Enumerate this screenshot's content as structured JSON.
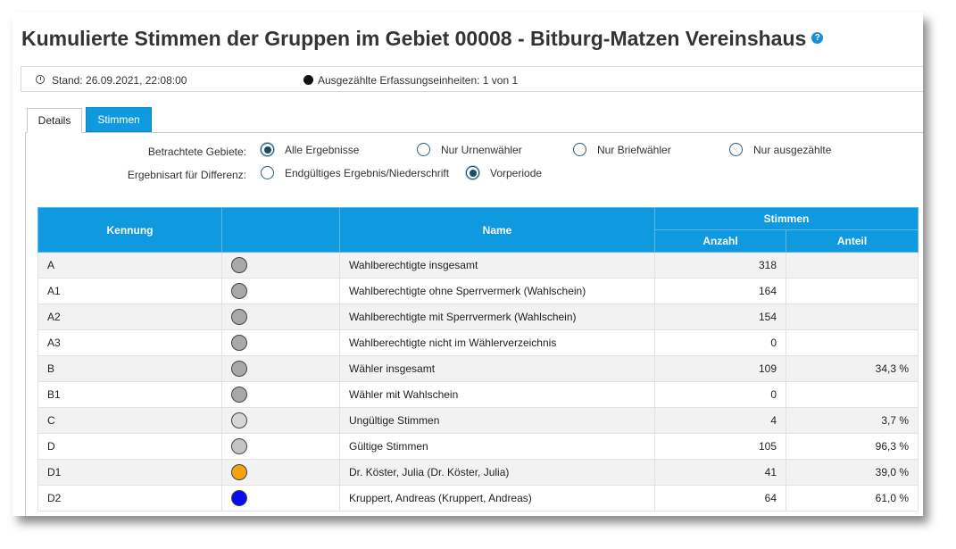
{
  "page": {
    "title": "Kumulierte Stimmen der Gruppen im Gebiet 00008 - Bitburg-Matzen Vereinshaus",
    "help_icon": "?"
  },
  "status": {
    "stand": "Stand: 26.09.2021, 22:08:00",
    "ausgezaehlt": "Ausgezählte Erfassungseinheiten: 1 von 1"
  },
  "tabs": [
    {
      "label": "Details",
      "active": true
    },
    {
      "label": "Stimmen",
      "active": false
    }
  ],
  "filters": {
    "gebiete_label": "Betrachtete Gebiete:",
    "gebiete_options": [
      {
        "label": "Alle Ergebnisse",
        "checked": true
      },
      {
        "label": "Nur Urnenwähler",
        "checked": false
      },
      {
        "label": "Nur Briefwähler",
        "checked": false
      },
      {
        "label": "Nur ausgezählte",
        "checked": false
      }
    ],
    "differenz_label": "Ergebnisart für Differenz:",
    "differenz_options": [
      {
        "label": "Endgültiges Ergebnis/Niederschrift",
        "checked": false
      },
      {
        "label": "Vorperiode",
        "checked": true
      }
    ]
  },
  "table": {
    "headers": {
      "kennung": "Kennung",
      "name": "Name",
      "stimmen": "Stimmen",
      "anzahl": "Anzahl",
      "anteil": "Anteil"
    },
    "rows": [
      {
        "kennung": "A",
        "color": "#a8a8a8",
        "name": "Wahlberechtigte insgesamt",
        "anzahl": "318",
        "anteil": ""
      },
      {
        "kennung": "A1",
        "color": "#a8a8a8",
        "name": "Wahlberechtigte ohne Sperrvermerk (Wahlschein)",
        "anzahl": "164",
        "anteil": ""
      },
      {
        "kennung": "A2",
        "color": "#a8a8a8",
        "name": "Wahlberechtigte mit Sperrvermerk (Wahlschein)",
        "anzahl": "154",
        "anteil": ""
      },
      {
        "kennung": "A3",
        "color": "#a8a8a8",
        "name": "Wahlberechtigte nicht im Wählerverzeichnis",
        "anzahl": "0",
        "anteil": ""
      },
      {
        "kennung": "B",
        "color": "#a8a8a8",
        "name": "Wähler insgesamt",
        "anzahl": "109",
        "anteil": "34,3 %"
      },
      {
        "kennung": "B1",
        "color": "#a8a8a8",
        "name": "Wähler mit Wahlschein",
        "anzahl": "0",
        "anteil": ""
      },
      {
        "kennung": "C",
        "color": "#d6d6d6",
        "name": "Ungültige Stimmen",
        "anzahl": "4",
        "anteil": "3,7 %"
      },
      {
        "kennung": "D",
        "color": "#c4c4c4",
        "name": "Gültige Stimmen",
        "anzahl": "105",
        "anteil": "96,3 %"
      },
      {
        "kennung": "D1",
        "color": "#f4a20f",
        "name": "Dr. Köster, Julia (Dr. Köster, Julia)",
        "anzahl": "41",
        "anteil": "39,0 %"
      },
      {
        "kennung": "D2",
        "color": "#0a0aee",
        "name": "Kruppert, Andreas (Kruppert, Andreas)",
        "anzahl": "64",
        "anteil": "61,0 %"
      }
    ]
  }
}
